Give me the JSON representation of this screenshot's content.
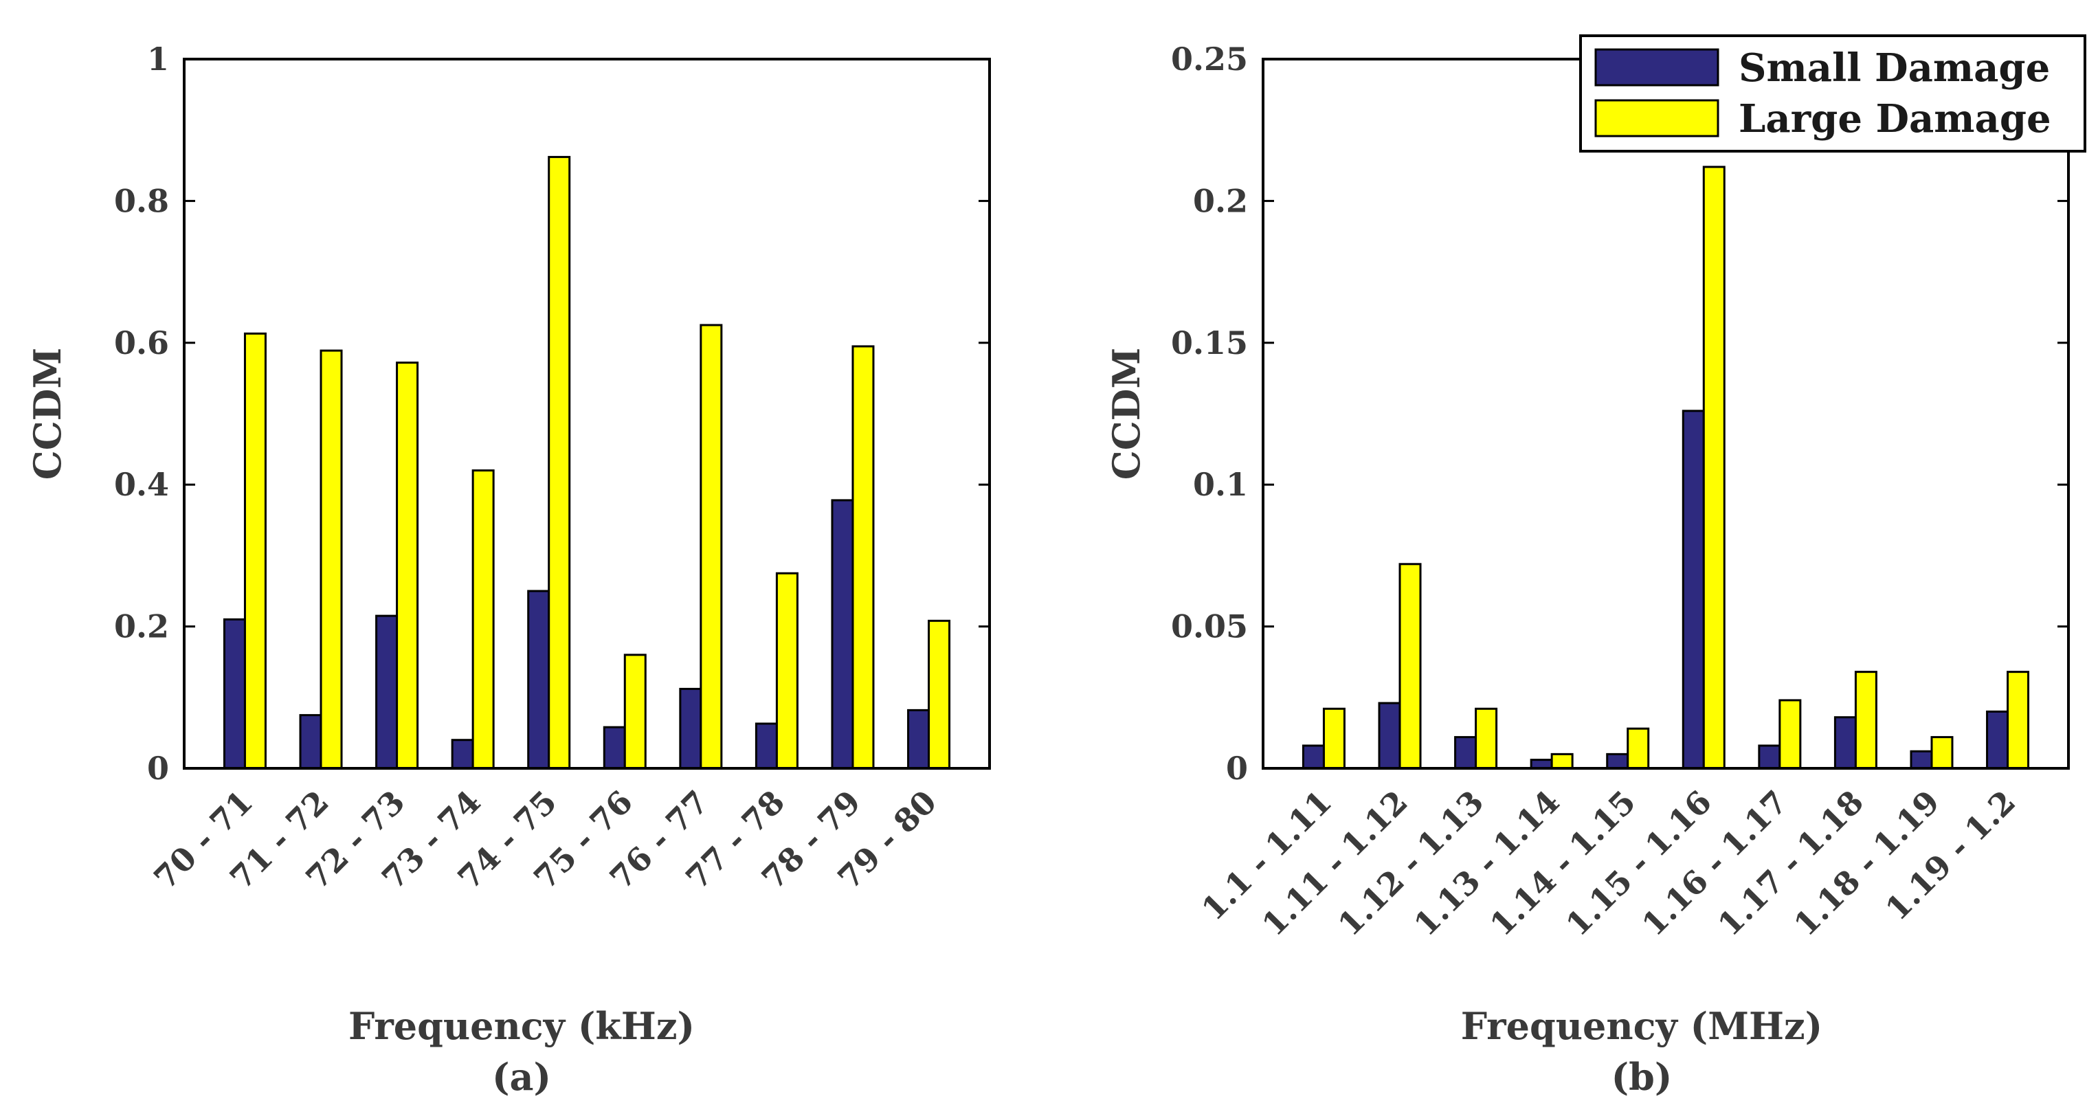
{
  "colors": {
    "small": "#2e2a7f",
    "large": "#ffff00",
    "axis": "#000000"
  },
  "legend": {
    "entries": [
      "Small Damage",
      "Large Damage"
    ],
    "placement": "top-right of panel b"
  },
  "chart_data": [
    {
      "type": "bar",
      "panel_label": "(a)",
      "xlabel": "Frequency (kHz)",
      "ylabel": "CCDM",
      "ylim": [
        0,
        1
      ],
      "yticks": [
        "0",
        "0.2",
        "0.4",
        "0.6",
        "0.8",
        "1"
      ],
      "ytick_values": [
        0,
        0.2,
        0.4,
        0.6,
        0.8,
        1
      ],
      "categories": [
        "70 - 71",
        "71 - 72",
        "72 - 73",
        "73 - 74",
        "74 - 75",
        "75 - 76",
        "76 - 77",
        "77 - 78",
        "78 - 79",
        "79 - 80"
      ],
      "series": [
        {
          "name": "Small Damage",
          "values": [
            0.21,
            0.075,
            0.215,
            0.04,
            0.25,
            0.058,
            0.112,
            0.063,
            0.378,
            0.082
          ]
        },
        {
          "name": "Large Damage",
          "values": [
            0.613,
            0.589,
            0.572,
            0.42,
            0.862,
            0.16,
            0.625,
            0.275,
            0.595,
            0.208
          ]
        }
      ]
    },
    {
      "type": "bar",
      "panel_label": "(b)",
      "xlabel": "Frequency (MHz)",
      "ylabel": "CCDM",
      "ylim": [
        0,
        0.25
      ],
      "yticks": [
        "0",
        "0.05",
        "0.1",
        "0.15",
        "0.2",
        "0.25"
      ],
      "ytick_values": [
        0,
        0.05,
        0.1,
        0.15,
        0.2,
        0.25
      ],
      "categories": [
        "1.1 - 1.11",
        "1.11 - 1.12",
        "1.12 - 1.13",
        "1.13 - 1.14",
        "1.14 - 1.15",
        "1.15 - 1.16",
        "1.16 - 1.17",
        "1.17 - 1.18",
        "1.18 - 1.19",
        "1.19 - 1.2"
      ],
      "series": [
        {
          "name": "Small Damage",
          "values": [
            0.008,
            0.023,
            0.011,
            0.003,
            0.005,
            0.126,
            0.008,
            0.018,
            0.006,
            0.02
          ]
        },
        {
          "name": "Large Damage",
          "values": [
            0.021,
            0.072,
            0.021,
            0.005,
            0.014,
            0.212,
            0.024,
            0.034,
            0.011,
            0.034
          ]
        }
      ]
    }
  ]
}
